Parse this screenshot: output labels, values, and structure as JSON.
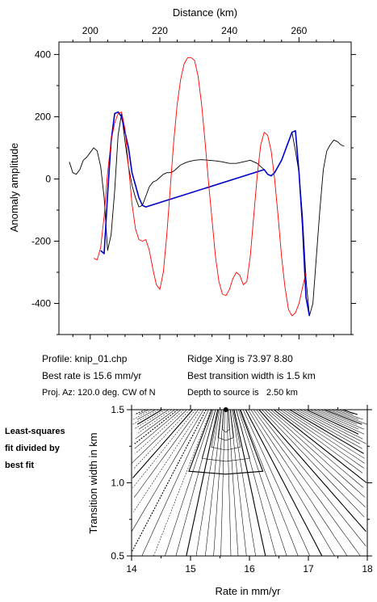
{
  "chart_data": [
    {
      "type": "line",
      "title": "",
      "xlabel": "Distance (km)",
      "ylabel": "Anomaly amplitude",
      "xlim": [
        191,
        275
      ],
      "ylim": [
        -500,
        440
      ],
      "xticks": [
        200,
        220,
        240,
        260
      ],
      "xtick_labels": [
        "200",
        "220",
        "240",
        "260"
      ],
      "yticks": [
        -400,
        -200,
        0,
        200,
        400
      ],
      "ytick_labels": [
        "-400",
        "-200",
        "0",
        "200",
        "400"
      ],
      "grid": false,
      "legend": "none",
      "series": [
        {
          "color": "#000000",
          "x": [
            194,
            195,
            196,
            197,
            198,
            199,
            200,
            201,
            202,
            203,
            204,
            205,
            206,
            207,
            208,
            209,
            210,
            211,
            212,
            213,
            214,
            215,
            216,
            217,
            218,
            219,
            220,
            221,
            222,
            223,
            224,
            225,
            226,
            227,
            228,
            230,
            232,
            234,
            236,
            238,
            240,
            242,
            244,
            246,
            248,
            250,
            251,
            252,
            253,
            254,
            255,
            256,
            257,
            258,
            259,
            260,
            261,
            262,
            263,
            264,
            265,
            266,
            267,
            268,
            269,
            270,
            271,
            272,
            273
          ],
          "y": [
            55,
            20,
            15,
            30,
            60,
            70,
            85,
            100,
            90,
            40,
            -60,
            -230,
            -180,
            -40,
            140,
            210,
            120,
            40,
            -20,
            -60,
            -90,
            -85,
            -55,
            -25,
            -10,
            -5,
            5,
            15,
            20,
            20,
            25,
            35,
            45,
            50,
            55,
            60,
            62,
            60,
            58,
            55,
            50,
            50,
            55,
            60,
            50,
            30,
            15,
            10,
            20,
            40,
            60,
            90,
            120,
            150,
            90,
            20,
            -120,
            -320,
            -440,
            -400,
            -250,
            -100,
            30,
            90,
            110,
            125,
            120,
            110,
            105
          ]
        },
        {
          "color": "#0000cc",
          "x": [
            203,
            204,
            205,
            206,
            207,
            208,
            209,
            210,
            211,
            212,
            213,
            214,
            215,
            216,
            250,
            251,
            252,
            253,
            254,
            255,
            256,
            257,
            258,
            259,
            260,
            261,
            262,
            263
          ],
          "y": [
            -230,
            -240,
            -50,
            120,
            210,
            215,
            200,
            150,
            100,
            20,
            -20,
            -60,
            -85,
            -90,
            30,
            15,
            10,
            20,
            40,
            60,
            90,
            120,
            150,
            155,
            20,
            -150,
            -380,
            -440
          ]
        },
        {
          "color": "#ff0000",
          "x": [
            201,
            202,
            203,
            204,
            205,
            206,
            207,
            208,
            209,
            210,
            211,
            212,
            213,
            214,
            215,
            216,
            217,
            218,
            219,
            220,
            221,
            222,
            223,
            224,
            225,
            226,
            227,
            228,
            229,
            230,
            231,
            232,
            233,
            234,
            235,
            236,
            237,
            238,
            239,
            240,
            241,
            242,
            243,
            244,
            245,
            246,
            247,
            248,
            249,
            250,
            251,
            252,
            253,
            254,
            255,
            256,
            257,
            258,
            259,
            260,
            261,
            262
          ],
          "y": [
            -255,
            -260,
            -220,
            -120,
            20,
            120,
            180,
            210,
            215,
            160,
            40,
            -80,
            -160,
            -195,
            -200,
            -195,
            -230,
            -290,
            -340,
            -355,
            -300,
            -180,
            -30,
            120,
            240,
            320,
            370,
            390,
            390,
            380,
            330,
            240,
            120,
            -10,
            -130,
            -250,
            -330,
            -370,
            -375,
            -355,
            -320,
            -300,
            -310,
            -340,
            -330,
            -250,
            -120,
            10,
            110,
            150,
            140,
            90,
            0,
            -120,
            -250,
            -350,
            -420,
            -440,
            -430,
            -400,
            -350,
            -300
          ]
        }
      ]
    },
    {
      "type": "contour",
      "title": "",
      "xlabel": "Rate in mm/yr",
      "ylabel": "Transition width in km",
      "xlim": [
        14,
        18
      ],
      "ylim": [
        0.5,
        1.5
      ],
      "xticks": [
        14,
        15,
        16,
        17,
        18
      ],
      "xtick_labels": [
        "14",
        "15",
        "16",
        "17",
        "18"
      ],
      "yticks": [
        0.5,
        1.0,
        1.5
      ],
      "ytick_labels": [
        "0.5",
        "1.0",
        "1.5"
      ],
      "minimum": {
        "rate": 15.6,
        "width": 1.5
      },
      "grid": false,
      "legend": "none"
    }
  ],
  "info": {
    "profile": "Profile: knip_01.chp",
    "best_rate": "Best rate is 15.6 mm/yr",
    "proj_az": "Proj. Az: 120.0 deg. CW of N",
    "ridge_xing": "Ridge Xing is 73.97 8.80",
    "best_width": "Best transition width is 1.5 km",
    "depth": "Depth to source is   2.50 km"
  },
  "side_label": {
    "line1": "Least-squares",
    "line2": "fit divided by",
    "line3": "best fit"
  }
}
